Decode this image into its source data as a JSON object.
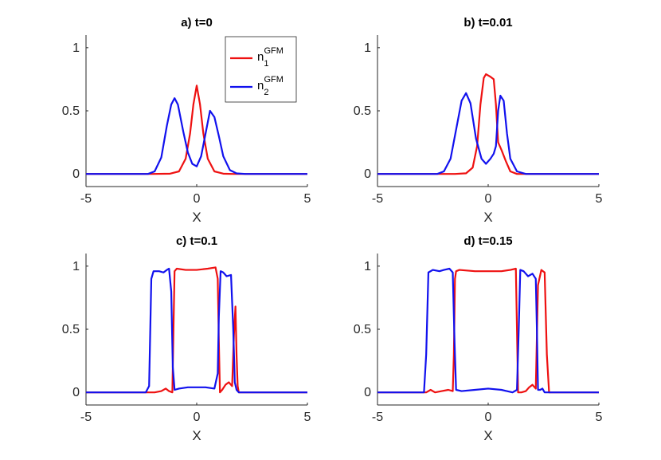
{
  "figure": {
    "background": "#ffffff",
    "axis_color": "#262626"
  },
  "legend": {
    "entries": [
      {
        "base": "n",
        "sub": "1",
        "sup": "GFM",
        "color": "#ee1111"
      },
      {
        "base": "n",
        "sub": "2",
        "sup": "GFM",
        "color": "#1111ee"
      }
    ]
  },
  "chart_data": [
    {
      "type": "line",
      "title": "a) t=0",
      "xlabel": "X",
      "xlim": [
        -5,
        5
      ],
      "ylim": [
        -0.1,
        1.1
      ],
      "xticks": [
        "-5",
        "0",
        "5"
      ],
      "yticks": [
        "0",
        "0.5",
        "1"
      ],
      "xtick_values": [
        -5,
        0,
        5
      ],
      "ytick_values": [
        0,
        0.5,
        1
      ],
      "series": [
        {
          "name": "n1^GFM",
          "color": "#ee1111",
          "x": [
            -5,
            -2.0,
            -1.2,
            -0.8,
            -0.5,
            -0.3,
            -0.15,
            0.0,
            0.15,
            0.3,
            0.5,
            0.8,
            1.2,
            1.6,
            5
          ],
          "y": [
            0,
            0,
            0.002,
            0.02,
            0.12,
            0.32,
            0.55,
            0.7,
            0.55,
            0.32,
            0.12,
            0.02,
            0.002,
            0,
            0
          ]
        },
        {
          "name": "n2^GFM",
          "color": "#1111ee",
          "x": [
            -5,
            -2.2,
            -1.9,
            -1.6,
            -1.35,
            -1.15,
            -1.0,
            -0.85,
            -0.6,
            -0.4,
            -0.2,
            0.0,
            0.2,
            0.4,
            0.6,
            0.8,
            1.0,
            1.2,
            1.5,
            1.8,
            2.2,
            5
          ],
          "y": [
            0,
            0,
            0.02,
            0.13,
            0.38,
            0.55,
            0.6,
            0.55,
            0.33,
            0.17,
            0.08,
            0.06,
            0.14,
            0.32,
            0.5,
            0.45,
            0.3,
            0.14,
            0.03,
            0.004,
            0,
            0
          ]
        }
      ]
    },
    {
      "type": "line",
      "title": "b) t=0.01",
      "xlabel": "X",
      "xlim": [
        -5,
        5
      ],
      "ylim": [
        -0.1,
        1.1
      ],
      "xticks": [
        "-5",
        "0",
        "5"
      ],
      "yticks": [
        "0",
        "0.5",
        "1"
      ],
      "xtick_values": [
        -5,
        0,
        5
      ],
      "ytick_values": [
        0,
        0.5,
        1
      ],
      "series": [
        {
          "name": "n1^GFM",
          "color": "#ee1111",
          "x": [
            -5,
            -1.5,
            -1.0,
            -0.7,
            -0.5,
            -0.35,
            -0.2,
            -0.1,
            0.1,
            0.25,
            0.35,
            0.45,
            0.6,
            0.8,
            1.0,
            1.3,
            5
          ],
          "y": [
            0,
            0,
            0.005,
            0.05,
            0.22,
            0.55,
            0.76,
            0.79,
            0.77,
            0.75,
            0.55,
            0.25,
            0.19,
            0.1,
            0.02,
            0,
            0
          ]
        },
        {
          "name": "n2^GFM",
          "color": "#1111ee",
          "x": [
            -5,
            -2.3,
            -2.0,
            -1.7,
            -1.45,
            -1.2,
            -1.0,
            -0.8,
            -0.55,
            -0.3,
            -0.1,
            0.1,
            0.25,
            0.35,
            0.45,
            0.55,
            0.7,
            0.85,
            1.0,
            1.3,
            1.7,
            5
          ],
          "y": [
            0,
            0,
            0.02,
            0.12,
            0.35,
            0.58,
            0.64,
            0.56,
            0.28,
            0.12,
            0.08,
            0.12,
            0.16,
            0.22,
            0.5,
            0.62,
            0.58,
            0.32,
            0.12,
            0.02,
            0,
            0
          ]
        }
      ]
    },
    {
      "type": "line",
      "title": "c) t=0.1",
      "xlabel": "X",
      "xlim": [
        -5,
        5
      ],
      "ylim": [
        -0.1,
        1.1
      ],
      "xticks": [
        "-5",
        "0",
        "5"
      ],
      "yticks": [
        "0",
        "0.5",
        "1"
      ],
      "xtick_values": [
        -5,
        0,
        5
      ],
      "ytick_values": [
        0,
        0.5,
        1
      ],
      "series": [
        {
          "name": "n1^GFM",
          "color": "#ee1111",
          "x": [
            -5,
            -1.9,
            -1.6,
            -1.4,
            -1.25,
            -1.1,
            -1.05,
            -1.0,
            -0.9,
            -0.5,
            0.0,
            0.5,
            0.85,
            0.95,
            1.0,
            1.05,
            1.15,
            1.3,
            1.45,
            1.6,
            1.68,
            1.75,
            1.8,
            1.85,
            1.9,
            5
          ],
          "y": [
            0,
            0,
            0.01,
            0.03,
            0.01,
            0.0,
            0.5,
            0.96,
            0.98,
            0.97,
            0.97,
            0.98,
            0.99,
            0.9,
            0.4,
            0.0,
            0.02,
            0.06,
            0.08,
            0.05,
            0.45,
            0.68,
            0.3,
            0.05,
            0.0,
            0
          ]
        },
        {
          "name": "n2^GFM",
          "color": "#1111ee",
          "x": [
            -5,
            -2.3,
            -2.15,
            -2.05,
            -1.95,
            -1.7,
            -1.5,
            -1.35,
            -1.25,
            -1.15,
            -1.08,
            -1.0,
            -0.8,
            -0.4,
            0.0,
            0.4,
            0.8,
            0.95,
            1.0,
            1.08,
            1.2,
            1.35,
            1.55,
            1.65,
            1.72,
            1.8,
            1.9,
            2.0,
            5
          ],
          "y": [
            0,
            0,
            0.05,
            0.9,
            0.96,
            0.96,
            0.95,
            0.97,
            0.98,
            0.8,
            0.2,
            0.02,
            0.03,
            0.04,
            0.04,
            0.04,
            0.03,
            0.15,
            0.6,
            0.96,
            0.95,
            0.92,
            0.93,
            0.5,
            0.08,
            0.02,
            0.0,
            0.0,
            0
          ]
        }
      ]
    },
    {
      "type": "line",
      "title": "d) t=0.15",
      "xlabel": "X",
      "xlim": [
        -5,
        5
      ],
      "ylim": [
        -0.1,
        1.1
      ],
      "xticks": [
        "-5",
        "0",
        "5"
      ],
      "yticks": [
        "0",
        "0.5",
        "1"
      ],
      "xtick_values": [
        -5,
        0,
        5
      ],
      "ytick_values": [
        0,
        0.5,
        1
      ],
      "series": [
        {
          "name": "n1^GFM",
          "color": "#ee1111",
          "x": [
            -5,
            -2.8,
            -2.6,
            -2.4,
            -2.1,
            -1.8,
            -1.6,
            -1.55,
            -1.5,
            -1.45,
            -1.3,
            -0.6,
            0.0,
            0.6,
            1.0,
            1.25,
            1.3,
            1.35,
            1.5,
            1.7,
            1.85,
            2.0,
            2.15,
            2.25,
            2.4,
            2.55,
            2.65,
            2.75,
            5
          ],
          "y": [
            0,
            0,
            0.02,
            0.0,
            0.01,
            0.02,
            0.01,
            0.3,
            0.9,
            0.96,
            0.97,
            0.96,
            0.96,
            0.96,
            0.97,
            0.98,
            0.5,
            0.0,
            0.0,
            0.01,
            0.04,
            0.06,
            0.03,
            0.85,
            0.97,
            0.95,
            0.3,
            0.0,
            0
          ]
        },
        {
          "name": "n2^GFM",
          "color": "#1111ee",
          "x": [
            -5,
            -2.9,
            -2.8,
            -2.7,
            -2.5,
            -2.2,
            -2.0,
            -1.75,
            -1.6,
            -1.52,
            -1.45,
            -1.2,
            -0.6,
            0.0,
            0.6,
            1.1,
            1.3,
            1.38,
            1.45,
            1.6,
            1.8,
            2.0,
            2.15,
            2.2,
            2.25,
            2.35,
            2.45,
            2.55,
            5
          ],
          "y": [
            0,
            0,
            0.3,
            0.95,
            0.97,
            0.96,
            0.97,
            0.98,
            0.95,
            0.4,
            0.02,
            0.01,
            0.02,
            0.03,
            0.02,
            0.0,
            0.02,
            0.5,
            0.97,
            0.96,
            0.92,
            0.94,
            0.9,
            0.5,
            0.02,
            0.02,
            0.03,
            0.0,
            0
          ]
        }
      ]
    }
  ]
}
